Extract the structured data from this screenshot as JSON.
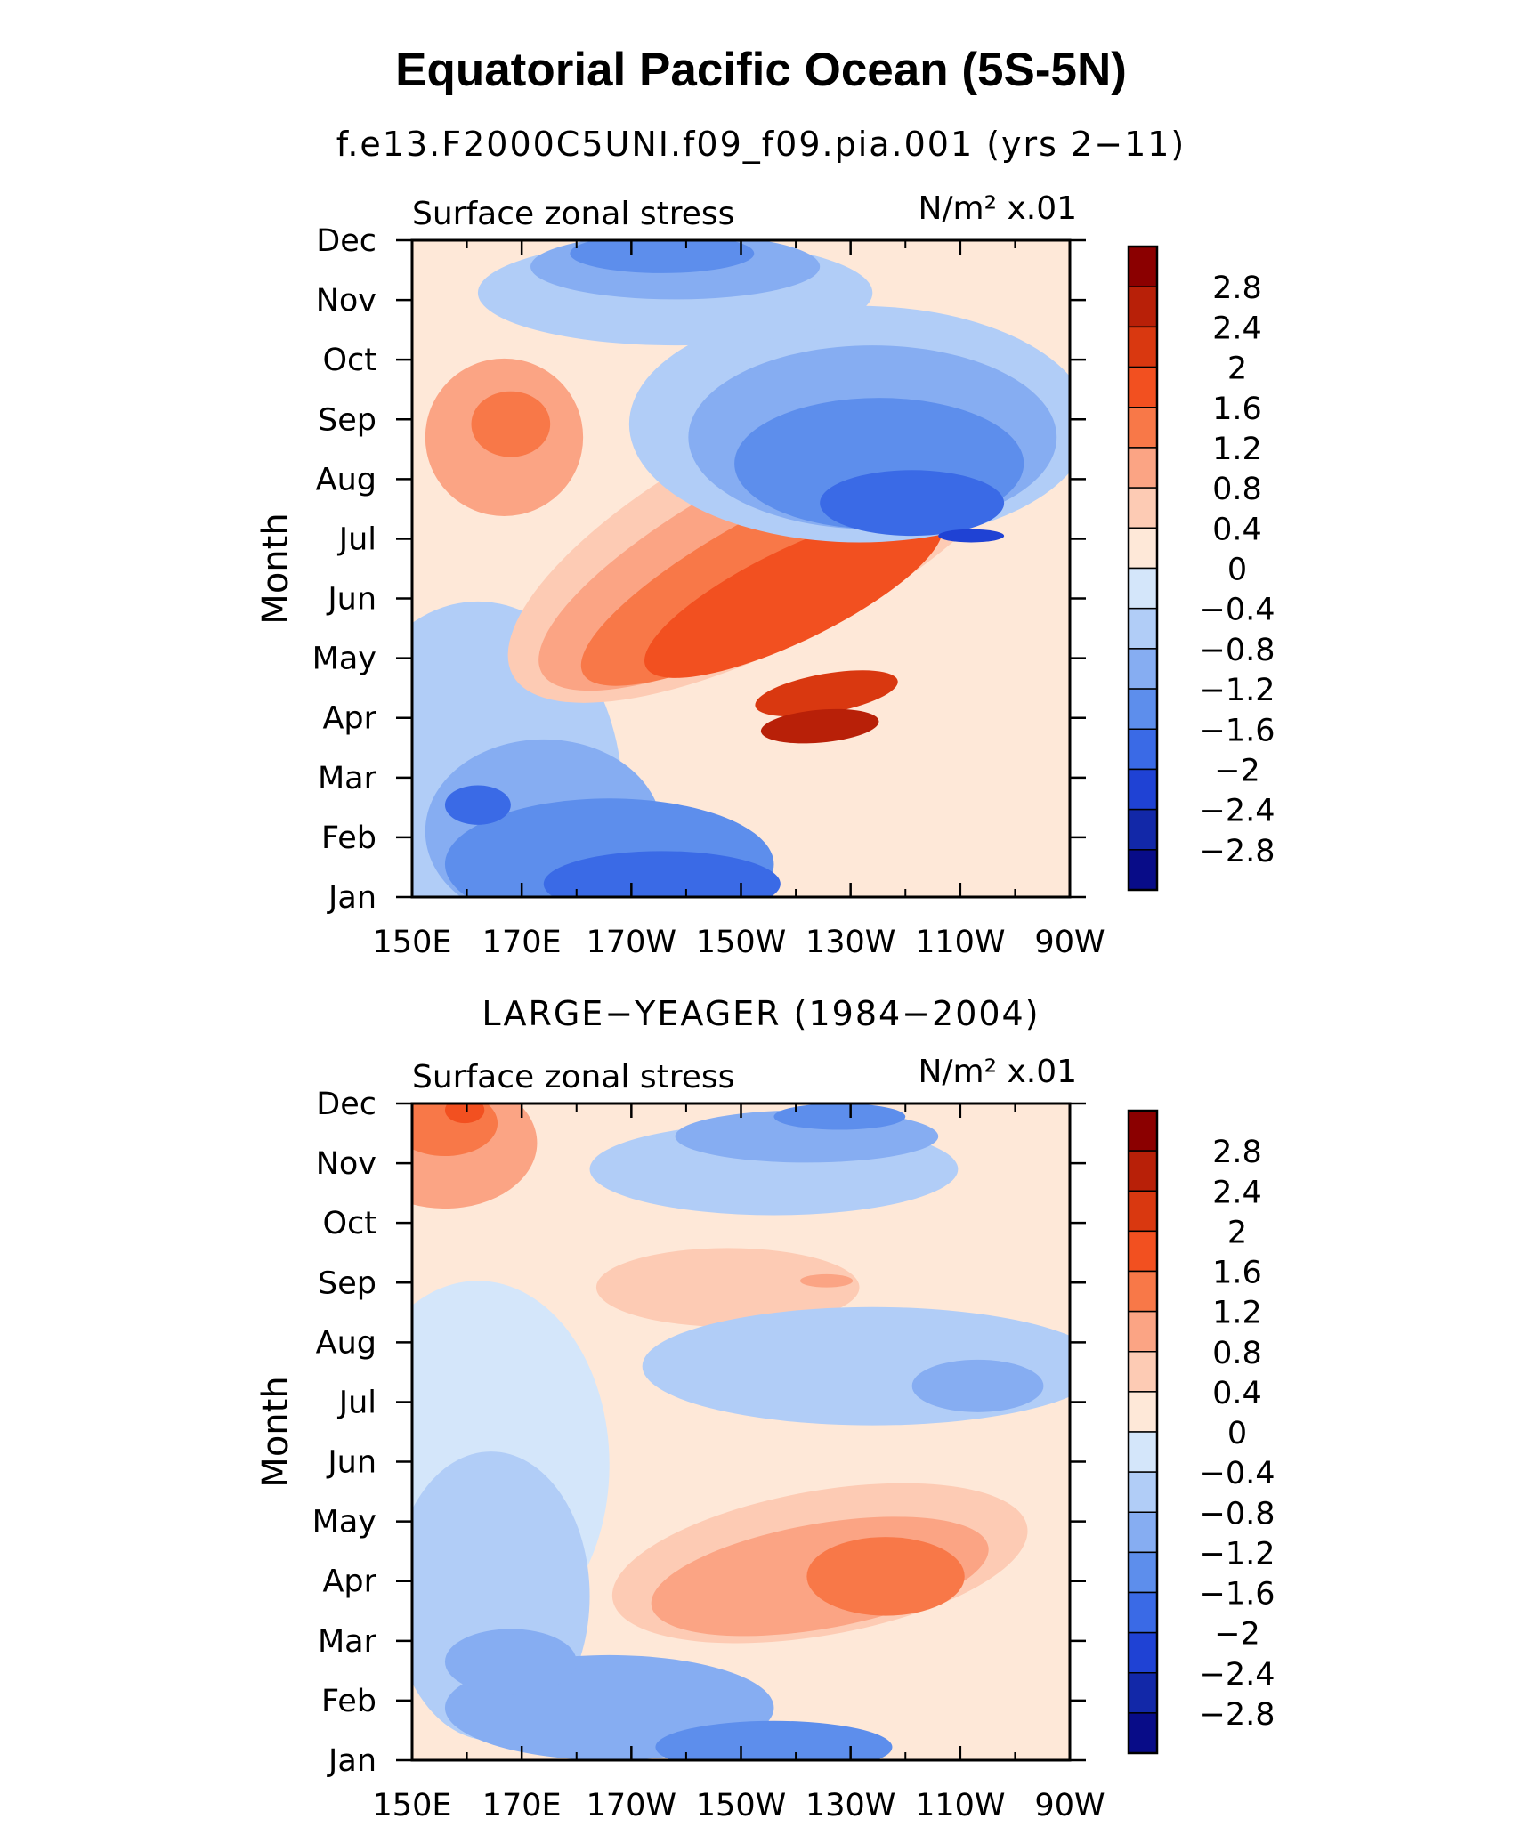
{
  "title": "Equatorial Pacific Ocean (5S-5N)",
  "chart_data": [
    {
      "type": "heatmap",
      "subtitle": "f.e13.F2000C5UNI.f09_f09.pia.001 (yrs 2−11)",
      "left_label": "Surface zonal stress",
      "units_label": "N/m² x.01",
      "ylabel": "Month",
      "x_ticks": [
        "150E",
        "170E",
        "170W",
        "150W",
        "130W",
        "110W",
        "90W"
      ],
      "y_ticks": [
        "Jan",
        "Feb",
        "Mar",
        "Apr",
        "May",
        "Jun",
        "Jul",
        "Aug",
        "Sep",
        "Oct",
        "Nov",
        "Dec"
      ],
      "xlim": [
        "150E",
        "90W"
      ],
      "ylim": [
        "Jan",
        "Dec"
      ],
      "levels": [
        "2.8",
        "2.4",
        "2",
        "1.6",
        "1.2",
        "0.8",
        "0.4",
        "0",
        "−0.4",
        "−0.8",
        "−1.2",
        "−1.6",
        "−2",
        "−2.4",
        "−2.8"
      ],
      "colors": [
        "#8b0000",
        "#b82008",
        "#d93810",
        "#f25020",
        "#f87848",
        "#fba484",
        "#fdcbb4",
        "#fee8d8",
        "#d4e6fa",
        "#b1cdf7",
        "#86adf2",
        "#5d8eec",
        "#3a6ae6",
        "#1f42d4",
        "#1228a8",
        "#080c88"
      ]
    },
    {
      "type": "heatmap",
      "subtitle": "LARGE−YEAGER (1984−2004)",
      "left_label": "Surface zonal stress",
      "units_label": "N/m² x.01",
      "ylabel": "Month",
      "x_ticks": [
        "150E",
        "170E",
        "170W",
        "150W",
        "130W",
        "110W",
        "90W"
      ],
      "y_ticks": [
        "Jan",
        "Feb",
        "Mar",
        "Apr",
        "May",
        "Jun",
        "Jul",
        "Aug",
        "Sep",
        "Oct",
        "Nov",
        "Dec"
      ],
      "xlim": [
        "150E",
        "90W"
      ],
      "ylim": [
        "Jan",
        "Dec"
      ],
      "levels": [
        "2.8",
        "2.4",
        "2",
        "1.6",
        "1.2",
        "0.8",
        "0.4",
        "0",
        "−0.4",
        "−0.8",
        "−1.2",
        "−1.6",
        "−2",
        "−2.4",
        "−2.8"
      ],
      "colors": [
        "#8b0000",
        "#b82008",
        "#d93810",
        "#f25020",
        "#f87848",
        "#fba484",
        "#fdcbb4",
        "#fee8d8",
        "#d4e6fa",
        "#b1cdf7",
        "#86adf2",
        "#5d8eec",
        "#3a6ae6",
        "#1f42d4",
        "#1228a8",
        "#080c88"
      ]
    }
  ]
}
